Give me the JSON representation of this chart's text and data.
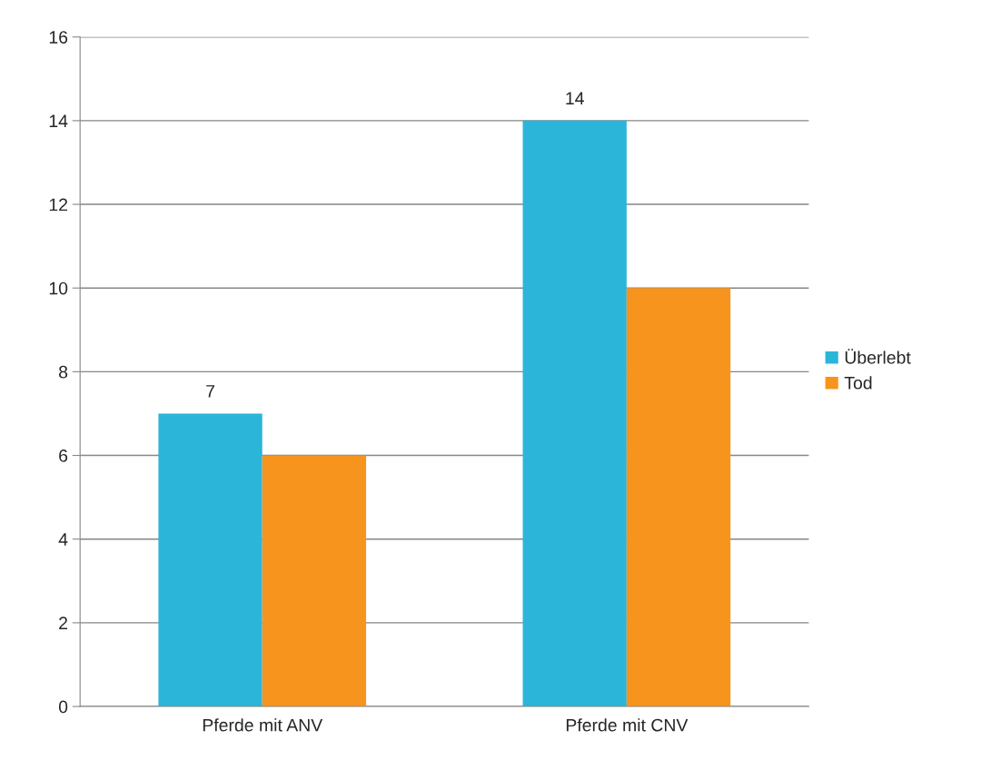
{
  "chart_data": {
    "type": "bar",
    "categories": [
      "Pferde mit ANV",
      "Pferde mit CNV"
    ],
    "series": [
      {
        "name": "Überlebt",
        "color": "#2bb5d9",
        "values": [
          7,
          14
        ],
        "value_labels": [
          "7",
          "14"
        ]
      },
      {
        "name": "Tod",
        "color": "#f7941d",
        "values": [
          6,
          10
        ],
        "value_labels": [
          null,
          null
        ]
      }
    ],
    "ylim": [
      0,
      16
    ],
    "yticks": [
      0,
      2,
      4,
      6,
      8,
      10,
      12,
      14,
      16
    ],
    "grid": "y",
    "legend": "right"
  }
}
